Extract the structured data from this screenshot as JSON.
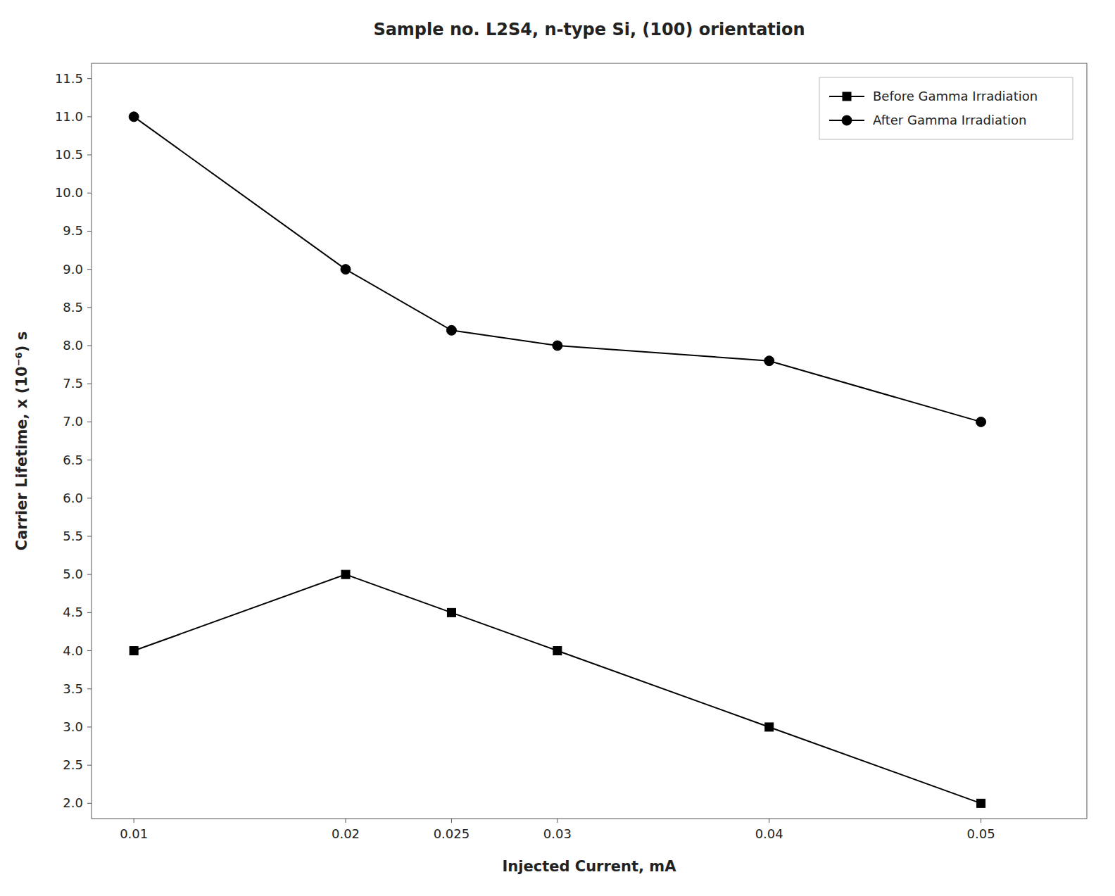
{
  "chart_data": {
    "type": "line",
    "title": "Sample no. L2S4, n-type Si, (100) orientation",
    "xlabel": "Injected Current, mA",
    "ylabel": "Carrier Lifetime, x (10⁻⁶) s",
    "x": [
      0.01,
      0.02,
      0.025,
      0.03,
      0.04,
      0.05
    ],
    "series": [
      {
        "name": "Before Gamma Irradiation",
        "color": "#000000",
        "marker": "square",
        "values": [
          4.0,
          5.0,
          4.5,
          4.0,
          3.0,
          2.0
        ]
      },
      {
        "name": "After Gamma Irradiation",
        "color": "#000000",
        "marker": "circle",
        "values": [
          11.0,
          9.0,
          8.2,
          8.0,
          7.8,
          7.0
        ]
      }
    ],
    "xlim": [
      0.008,
      0.055
    ],
    "ylim": [
      1.8,
      11.7
    ],
    "xticks": [
      0.01,
      0.02,
      0.025,
      0.03,
      0.04,
      0.05
    ],
    "yticks": [
      {
        "value": 2.0,
        "label": "2.0"
      },
      2.5,
      {
        "value": 3.0,
        "label": "3.0"
      },
      3.5,
      {
        "value": 4.0,
        "label": "4.0"
      },
      4.5,
      {
        "value": 5.0,
        "label": "5.0"
      },
      5.5,
      {
        "value": 6.0,
        "label": "6.0"
      },
      6.5,
      {
        "value": 7.0,
        "label": "7.0"
      },
      7.5,
      {
        "value": 8.0,
        "label": "8.0"
      },
      8.5,
      {
        "value": 9.0,
        "label": "9.0"
      },
      9.5,
      {
        "value": 10.0,
        "label": "10.0"
      },
      10.5,
      {
        "value": 11.0,
        "label": "11.0"
      },
      11.5
    ],
    "grid": false,
    "legend": "upper right"
  }
}
